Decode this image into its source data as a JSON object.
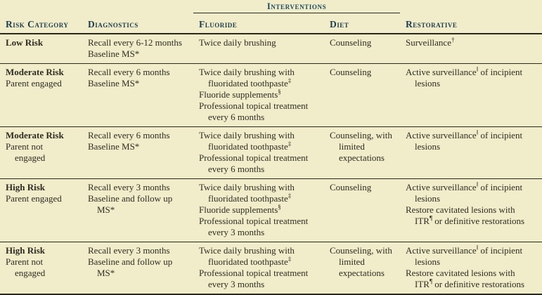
{
  "table": {
    "group_header": "Interventions",
    "columns": [
      "Risk Category",
      "Diagnostics",
      "Fluoride",
      "Diet",
      "Restorative"
    ],
    "rows": [
      {
        "risk_level": "Low Risk",
        "parent_status": "",
        "diagnostics": [
          "Recall every 6-12 months",
          "Baseline MS*"
        ],
        "fluoride": [
          "Twice daily brushing"
        ],
        "diet": [
          "Counseling"
        ],
        "restorative": [
          "Surveillance†"
        ]
      },
      {
        "risk_level": "Moderate Risk",
        "parent_status": "Parent engaged",
        "diagnostics": [
          "Recall every 6 months",
          "Baseline MS*"
        ],
        "fluoride": [
          "Twice daily brushing with\nfluoridated toothpaste‡",
          "Fluoride supplements§",
          "Professional topical treatment\nevery 6 months"
        ],
        "diet": [
          "Counseling"
        ],
        "restorative": [
          "Active surveillance‖ of incipient\nlesions"
        ]
      },
      {
        "risk_level": "Moderate Risk",
        "parent_status": "Parent not\nengaged",
        "diagnostics": [
          "Recall every 6 months",
          "Baseline MS*"
        ],
        "fluoride": [
          "Twice daily brushing with\nfluoridated toothpaste‡",
          "Professional topical treatment\nevery 6 months"
        ],
        "diet": [
          "Counseling, with\nlimited\nexpectations"
        ],
        "restorative": [
          "Active surveillance‖ of incipient\nlesions"
        ]
      },
      {
        "risk_level": "High Risk",
        "parent_status": "Parent engaged",
        "diagnostics": [
          "Recall every 3 months",
          "Baseline and follow up\nMS*"
        ],
        "fluoride": [
          "Twice daily brushing with\nfluoridated toothpaste‡",
          "Fluoride supplements§",
          "Professional topical treatment\nevery 3 months"
        ],
        "diet": [
          "Counseling"
        ],
        "restorative": [
          "Active surveillance‖ of incipient\nlesions",
          "Restore cavitated lesions with\nITR¶ or definitive restorations"
        ]
      },
      {
        "risk_level": "High Risk",
        "parent_status": "Parent not\nengaged",
        "diagnostics": [
          "Recall every 3 months",
          "Baseline and follow up\nMS*"
        ],
        "fluoride": [
          "Twice daily brushing with\nfluoridated toothpaste‡",
          "Professional topical treatment\nevery 3 months"
        ],
        "diet": [
          "Counseling, with\nlimited\nexpectations"
        ],
        "restorative": [
          "Active surveillance‖ of incipient\nlesions",
          "Restore cavitated lesions with\nITR¶ or definitive restorations"
        ]
      }
    ]
  },
  "colors": {
    "background": "#f1ecc9",
    "group_header_text": "#1b4a63",
    "column_header_text": "#1c3d50",
    "body_text": "#2e2d24",
    "rule": "#2a2920"
  }
}
